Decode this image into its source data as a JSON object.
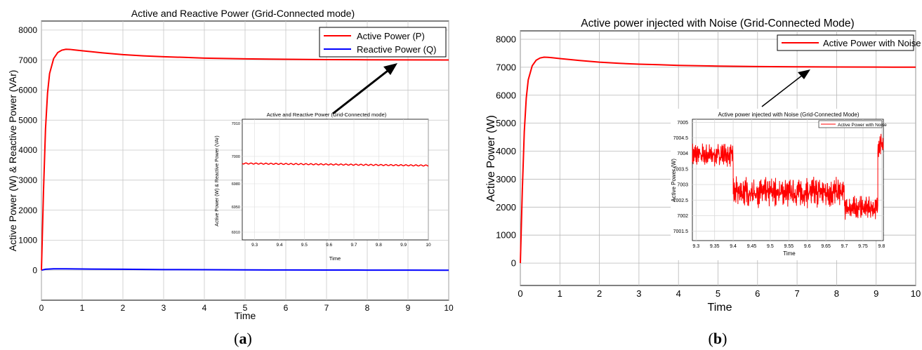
{
  "chart_data": [
    {
      "panel": "a",
      "caption": "(a)",
      "type": "line",
      "title": "Active and Reactive Power (Grid-Connected mode)",
      "xlabel": "Time",
      "ylabel": "Active Power (W) & Reactive Power (VAr)",
      "xlim": [
        0,
        10
      ],
      "ylim": [
        -1000,
        8300
      ],
      "xticks": [
        "0",
        "1",
        "2",
        "3",
        "4",
        "5",
        "6",
        "7",
        "8",
        "9",
        "10"
      ],
      "yticks": [
        "0",
        "1000",
        "2000",
        "3000",
        "4000",
        "5000",
        "6000",
        "7000",
        "8000"
      ],
      "grid": true,
      "legend_position": "top-right",
      "series": [
        {
          "name": "Active Power (P)",
          "color": "#ff0000",
          "x": [
            0,
            0.05,
            0.1,
            0.15,
            0.2,
            0.3,
            0.4,
            0.5,
            0.6,
            0.7,
            0.8,
            1,
            1.5,
            2,
            2.5,
            3,
            3.5,
            4,
            5,
            6,
            7,
            8,
            9,
            10
          ],
          "y": [
            0,
            2600,
            4700,
            5900,
            6550,
            7050,
            7250,
            7330,
            7360,
            7355,
            7340,
            7310,
            7240,
            7180,
            7140,
            7110,
            7090,
            7065,
            7040,
            7025,
            7015,
            7010,
            7005,
            7003
          ]
        },
        {
          "name": "Reactive Power (Q)",
          "color": "#0000ff",
          "x": [
            0,
            0.1,
            0.3,
            0.6,
            1,
            2,
            3,
            4,
            5,
            6,
            7,
            8,
            9,
            10
          ],
          "y": [
            0,
            30,
            45,
            45,
            40,
            30,
            20,
            15,
            10,
            8,
            5,
            3,
            2,
            0
          ]
        }
      ],
      "inset": {
        "title": "Active and Reactive Power (Grid-Connected mode)",
        "xlabel": "Time",
        "ylabel": "Active Power (W) & Reactive Power (VAr)",
        "xlim": [
          9.25,
          10
        ],
        "ylim": [
          6905,
          7012
        ],
        "xticks": [
          "9.3",
          "9.4",
          "9.5",
          "9.6",
          "9.7",
          "9.8",
          "9.9",
          "10"
        ],
        "yticks": [
          "6910",
          "6950",
          "6980",
          "7000",
          "7010"
        ],
        "series": [
          {
            "color": "#ff0000",
            "x": [
              9.25,
              9.35,
              9.45,
              9.55,
              9.65,
              9.75,
              9.85,
              9.95,
              10
            ],
            "y": [
              6994.5,
              6994.3,
              6994.1,
              6993.9,
              6993.7,
              6993.5,
              6993.3,
              6993.1,
              6993.0
            ]
          }
        ]
      },
      "annotation": "arrow pointing from inset to steady-state region near t=9"
    },
    {
      "panel": "b",
      "caption": "(b)",
      "type": "line",
      "title": "Active power injected with Noise (Grid-Connected Mode)",
      "xlabel": "Time",
      "ylabel": "Active Power (W)",
      "xlim": [
        0,
        10
      ],
      "ylim": [
        -800,
        8300
      ],
      "xticks": [
        "0",
        "1",
        "2",
        "3",
        "4",
        "5",
        "6",
        "7",
        "8",
        "9",
        "10"
      ],
      "yticks": [
        "0",
        "1000",
        "2000",
        "3000",
        "4000",
        "5000",
        "6000",
        "7000",
        "8000"
      ],
      "grid": true,
      "legend_position": "top-right",
      "series": [
        {
          "name": "Active Power with Noise",
          "color": "#ff0000",
          "x": [
            0,
            0.05,
            0.1,
            0.15,
            0.2,
            0.3,
            0.4,
            0.5,
            0.6,
            0.7,
            0.8,
            1,
            1.5,
            2,
            2.5,
            3,
            3.5,
            4,
            5,
            6,
            7,
            8,
            9,
            10
          ],
          "y": [
            0,
            2600,
            4700,
            5900,
            6550,
            7050,
            7250,
            7330,
            7360,
            7355,
            7340,
            7310,
            7240,
            7180,
            7140,
            7110,
            7090,
            7065,
            7040,
            7025,
            7015,
            7010,
            7005,
            7003
          ]
        }
      ],
      "inset": {
        "title": "Active power injected with Noise (Grid-Connected Mode)",
        "xlabel": "Time",
        "ylabel": "Active Power (W)",
        "legend": "Active Power with Noise",
        "xlim": [
          9.29,
          9.805
        ],
        "ylim": [
          7001.2,
          7005.1
        ],
        "xticks": [
          "9.3",
          "9.35",
          "9.4",
          "9.45",
          "9.5",
          "9.55",
          "9.6",
          "9.65",
          "9.7",
          "9.75",
          "9.8"
        ],
        "yticks": [
          "7001.5",
          "7002",
          "7002.5",
          "7003",
          "7003.5",
          "7004",
          "7004.5",
          "7005"
        ],
        "segments": [
          {
            "x0": 9.29,
            "x1": 9.4,
            "mean": 7003.95,
            "amp": 0.35
          },
          {
            "x0": 9.4,
            "x1": 9.7,
            "mean": 7002.75,
            "amp": 0.45
          },
          {
            "x0": 9.7,
            "x1": 9.79,
            "mean": 7002.25,
            "amp": 0.35
          },
          {
            "x0": 9.79,
            "x1": 9.805,
            "mean": 7004.3,
            "amp": 0.4
          }
        ]
      },
      "annotation": "arrow pointing from inset to steady-state region near t=8.5"
    }
  ]
}
